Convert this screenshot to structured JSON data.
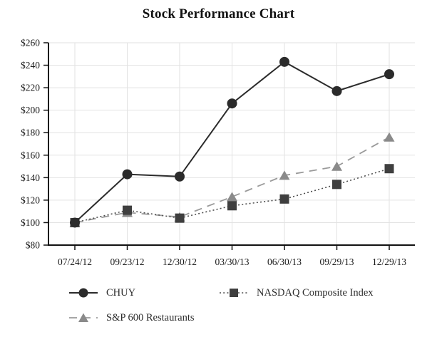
{
  "chart_data": {
    "type": "line",
    "title": "Stock Performance Chart",
    "categories": [
      "07/24/12",
      "09/23/12",
      "12/30/12",
      "03/30/13",
      "06/30/13",
      "09/29/13",
      "12/29/13"
    ],
    "series": [
      {
        "name": "CHUY",
        "values": [
          100,
          143,
          141,
          206,
          243,
          217,
          232
        ],
        "color": "#2b2b2b",
        "line_color": "#2b2b2b",
        "line_style": "solid",
        "marker": "circle"
      },
      {
        "name": "NASDAQ Composite Index",
        "values": [
          100,
          111,
          104,
          115,
          121,
          134,
          148
        ],
        "color": "#3f3f3f",
        "line_color": "#4f4f4f",
        "line_style": "dotted",
        "marker": "square"
      },
      {
        "name": "S&P 600 Restaurants",
        "values": [
          100,
          109,
          105,
          123,
          142,
          150,
          176
        ],
        "color": "#8a8a8a",
        "line_color": "#9a9a9a",
        "line_style": "dashed",
        "marker": "triangle"
      }
    ],
    "ylim": [
      80,
      260
    ],
    "ytick_step": 20,
    "ytick_prefix": "$",
    "ytick_labels": [
      "$80",
      "$100",
      "$120",
      "$140",
      "$160",
      "$180",
      "$200",
      "$220",
      "$240",
      "$260"
    ],
    "ytick_values": [
      80,
      100,
      120,
      140,
      160,
      180,
      200,
      220,
      240,
      260
    ],
    "grid": true,
    "legend_position": "bottom",
    "colors": {
      "axis": "#111111",
      "grid": "#e2e2e2",
      "text": "#1a1a1a"
    }
  }
}
